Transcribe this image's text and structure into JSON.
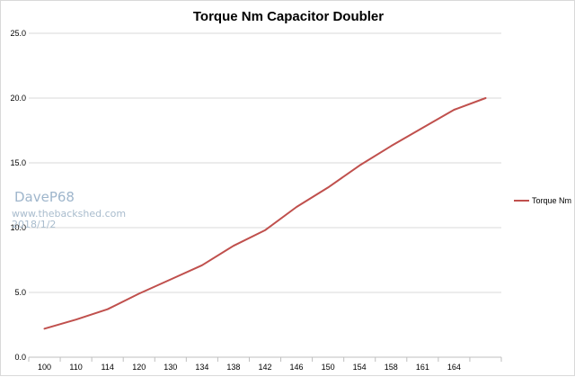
{
  "colors": {
    "series": "#c0504d",
    "grid": "#d9d9d9",
    "axis": "#bfbfbf",
    "watermark": "#9fb6cc"
  },
  "chart_data": {
    "type": "line",
    "title": "Torque Nm Capacitor Doubler",
    "categories": [
      "100",
      "110",
      "114",
      "120",
      "130",
      "134",
      "138",
      "142",
      "146",
      "150",
      "154",
      "158",
      "161",
      "164",
      ""
    ],
    "y_tick_labels": [
      "0.0",
      "5.0",
      "10.0",
      "15.0",
      "20.0",
      "25.0"
    ],
    "ylim": [
      0,
      25
    ],
    "grid": true,
    "legend_position": "right",
    "series": [
      {
        "name": "Torque Nm",
        "values": [
          2.2,
          2.9,
          3.7,
          4.9,
          6.0,
          7.1,
          8.6,
          9.8,
          11.6,
          13.1,
          14.8,
          16.3,
          17.7,
          19.1,
          20.0
        ]
      }
    ]
  },
  "watermark": {
    "name": "DaveP68",
    "site": "www.thebackshed.com",
    "date": "2018/1/2"
  }
}
